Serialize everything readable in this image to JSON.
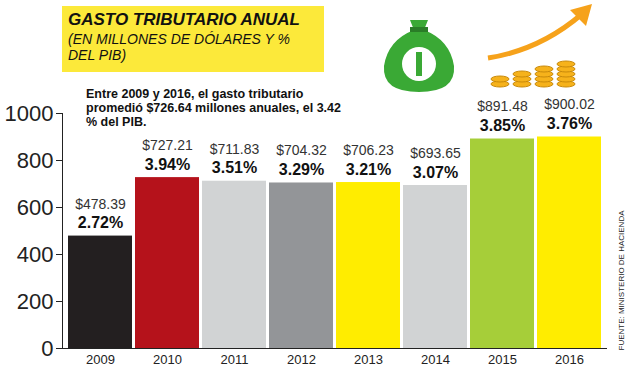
{
  "chart_data": {
    "type": "bar",
    "title": "GASTO TRIBUTARIO ANUAL",
    "subtitle": "(EN MILLONES DE DÓLARES Y % DEL PIB)",
    "annotations": [
      "Entre 2009 y 2016, el gasto tributario promedió $726.64 millones anuales, el 3.42 % del PIB."
    ],
    "source": "FUENTE: MINISTERIO DE HACIENDA",
    "categories": [
      "2009",
      "2010",
      "2011",
      "2012",
      "2013",
      "2014",
      "2015",
      "2016"
    ],
    "values": [
      478.39,
      727.21,
      711.83,
      704.32,
      706.23,
      693.65,
      891.48,
      900.02
    ],
    "value_labels": [
      "$478.39",
      "$727.21",
      "$711.83",
      "$704.32",
      "$706.23",
      "$693.65",
      "$891.48",
      "$900.02"
    ],
    "percent_values": [
      2.72,
      3.94,
      3.51,
      3.29,
      3.21,
      3.07,
      3.85,
      3.76
    ],
    "percent_labels": [
      "2.72%",
      "3.94%",
      "3.51%",
      "3.29%",
      "3.21%",
      "3.07%",
      "3.85%",
      "3.76%"
    ],
    "colors": [
      "#231f20",
      "#b5121b",
      "#d1d3d4",
      "#939598",
      "#ffed00",
      "#d1d3d4",
      "#a6ce39",
      "#ffed00"
    ],
    "ylim": [
      0,
      1000
    ],
    "yticks": [
      0,
      200,
      400,
      600,
      800,
      1000
    ],
    "grid": false,
    "data_labels": true
  }
}
